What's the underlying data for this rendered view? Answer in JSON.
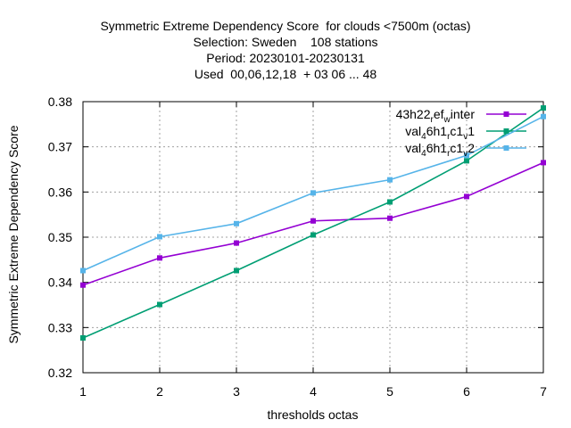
{
  "chart_data": {
    "type": "line",
    "title_lines": [
      "Symmetric Extreme Dependency Score  for clouds <7500m (octas)",
      "Selection: Sweden    108 stations",
      "Period: 20230101-20230131",
      "Used  00,06,12,18  + 03 06 ... 48"
    ],
    "xlabel": "thresholds octas",
    "ylabel": "Symmetric Extreme Dependency Score",
    "x": [
      1,
      2,
      3,
      4,
      5,
      6,
      7
    ],
    "xlim": [
      1,
      7
    ],
    "ylim": [
      0.32,
      0.38
    ],
    "yticks": [
      "0.32",
      "0.33",
      "0.34",
      "0.35",
      "0.36",
      "0.37",
      "0.38"
    ],
    "xticks": [
      "1",
      "2",
      "3",
      "4",
      "5",
      "6",
      "7"
    ],
    "grid": true,
    "legend_position": "top-right",
    "series": [
      {
        "name": "43h22_ref_winter",
        "sub": "r",
        "sub2": "w",
        "label_parts": [
          "43h22",
          "r",
          "ef",
          "w",
          "inter"
        ],
        "color": "#9400d3",
        "values": [
          0.3394,
          0.3454,
          0.3487,
          0.3536,
          0.3542,
          0.359,
          0.3665
        ]
      },
      {
        "name": "val_46h1_rc1_v1",
        "label_parts": [
          "val",
          "4",
          "6h1",
          "r",
          "c1",
          "v",
          "1"
        ],
        "color": "#009e73",
        "values": [
          0.3277,
          0.3351,
          0.3426,
          0.3505,
          0.3578,
          0.3669,
          0.3786
        ]
      },
      {
        "name": "val_46h1_rc1_v2",
        "label_parts": [
          "val",
          "4",
          "6h1",
          "r",
          "c1",
          "v",
          "2"
        ],
        "color": "#56b4e9",
        "values": [
          0.3426,
          0.3501,
          0.353,
          0.3598,
          0.3627,
          0.3681,
          0.3767
        ]
      }
    ]
  }
}
